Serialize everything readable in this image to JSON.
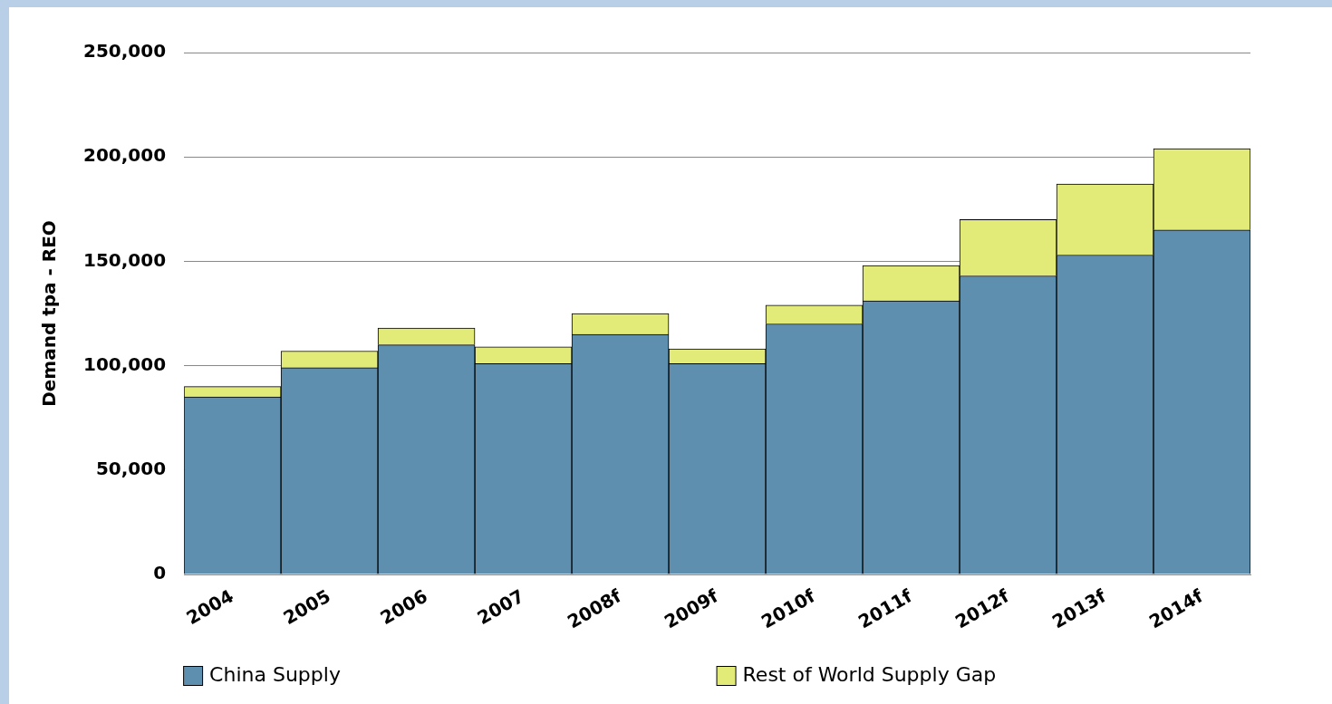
{
  "chart_data": {
    "type": "bar",
    "stacked": true,
    "ylabel": "Demand tpa - REO",
    "categories": [
      "2004",
      "2005",
      "2006",
      "2007",
      "2008f",
      "2009f",
      "2010f",
      "2011f",
      "2012f",
      "2013f",
      "2014f"
    ],
    "series": [
      {
        "name": "China Supply",
        "color": "#5f8fae",
        "values": [
          85000,
          99000,
          110000,
          101000,
          115000,
          101000,
          120000,
          131000,
          143000,
          153000,
          165000
        ]
      },
      {
        "name": "Rest of World Supply Gap",
        "color": "#e3eb78",
        "values": [
          5000,
          8000,
          8000,
          8000,
          10000,
          7000,
          9000,
          17000,
          27000,
          34000,
          39000
        ]
      }
    ],
    "ylim": [
      0,
      250000
    ],
    "yticks": [
      {
        "value": 0,
        "label": "0"
      },
      {
        "value": 50000,
        "label": "50,000"
      },
      {
        "value": 100000,
        "label": "100,000"
      },
      {
        "value": 150000,
        "label": "150,000"
      },
      {
        "value": 200000,
        "label": "200,000"
      },
      {
        "value": 250000,
        "label": "250,000"
      }
    ],
    "grid": "y",
    "legend": "bottom"
  }
}
